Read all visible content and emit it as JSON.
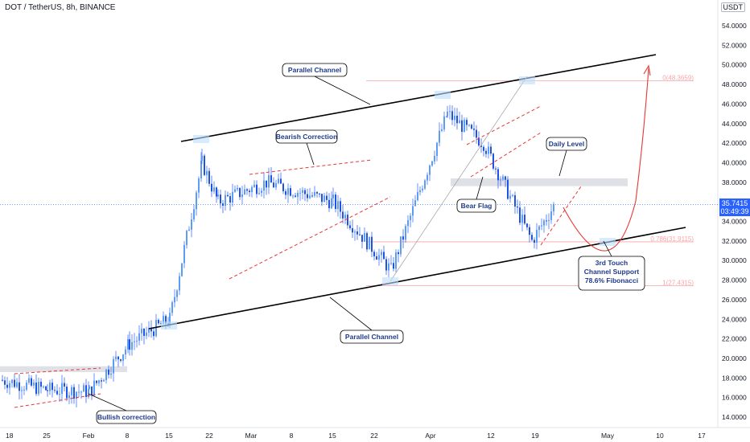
{
  "header": {
    "title": "DOT / TetherUS, 8h, BINANCE",
    "axis_top_label": "5",
    "currency_badge": "USDT"
  },
  "current_price": {
    "value": "35.7415",
    "countdown": "03:49:39",
    "color": "#2962ff"
  },
  "colors": {
    "up": "#2962ff",
    "down": "#1e53e5",
    "channel": "#000000",
    "dashed": "#e53935",
    "fib": "#f7a6a6",
    "projection": "#e53935",
    "callout_text": "#1e3a8a"
  },
  "chart_data": {
    "type": "candlestick",
    "y_axis": {
      "min": 13,
      "max": 56,
      "ticks": [
        "14.0000",
        "16.0000",
        "18.0000",
        "20.0000",
        "22.0000",
        "24.0000",
        "26.0000",
        "28.0000",
        "30.0000",
        "32.0000",
        "34.0000",
        "36.0000",
        "38.0000",
        "40.0000",
        "42.0000",
        "44.0000",
        "46.0000",
        "48.0000",
        "50.0000",
        "52.0000",
        "54.0000"
      ]
    },
    "x_axis": {
      "labels": [
        "18",
        "25",
        "Feb",
        "8",
        "15",
        "22",
        "Mar",
        "8",
        "15",
        "22",
        "Apr",
        "12",
        "19",
        "May",
        "10",
        "17"
      ]
    },
    "trend": [
      [
        "18",
        17.8
      ],
      [
        "25",
        16.8
      ],
      [
        "Feb",
        16.6
      ],
      [
        "8",
        21.5
      ],
      [
        "15",
        24
      ],
      [
        "22",
        40
      ],
      [
        "Mar",
        36
      ],
      [
        "8",
        38
      ],
      [
        "15",
        36
      ],
      [
        "22",
        29
      ],
      [
        "Apr",
        45
      ],
      [
        "12",
        42
      ],
      [
        "19",
        32
      ],
      [
        "19",
        35.7
      ]
    ],
    "fibonacci": [
      {
        "label": "0(48.3659)",
        "value": 48.3659
      },
      {
        "label": "0.786(31.9115)",
        "value": 31.9115
      },
      {
        "label": "1(27.4315)",
        "value": 27.4315
      }
    ],
    "annotations": [
      "Parallel Channel",
      "Bearish Correction",
      "Daily Level",
      "Bear Flag",
      "Parallel Channel",
      "Bullish correction",
      "3rd Touch\nChannel Support\n78.6% Fibonacci"
    ],
    "levels": {
      "daily_level": 38.0,
      "support_zone": 19
    }
  }
}
